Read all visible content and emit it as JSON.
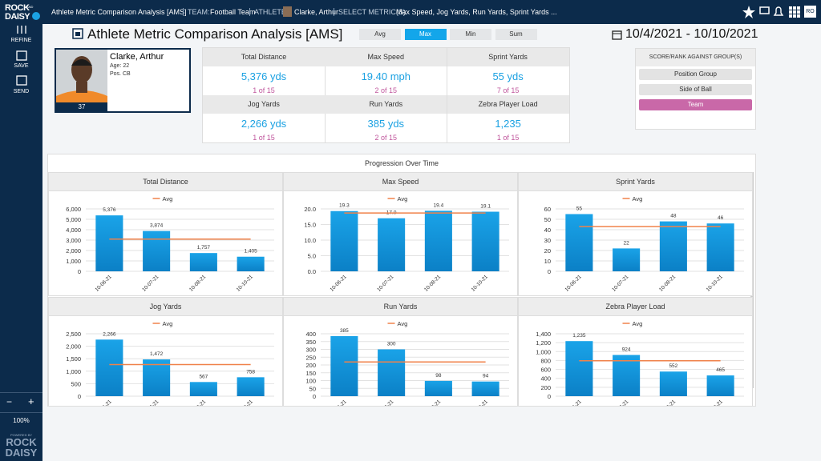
{
  "logo": {
    "line1": "ROCK",
    "line2": "DAISY",
    "small": "AND"
  },
  "topbar": {
    "title": "Athlete Metric Comparison Analysis [AMS]",
    "team_label": "TEAM:",
    "team": "Football Team",
    "athlete_label": "ATHLETE:",
    "athlete": "Clarke, Arthur",
    "metric_label": "SELECT METRIC(S):",
    "metrics": "Max Speed,  Jog Yards,  Run Yards,  Sprint Yards ...",
    "user": "RO"
  },
  "sidebar": {
    "items": [
      "REFINE",
      "SAVE",
      "SEND"
    ],
    "zoom_out": "−",
    "zoom_in": "+",
    "zoom": "100%",
    "powered": "POWERED BY",
    "brand1": "ROCK",
    "brand2": "DAISY"
  },
  "page": {
    "title": "Athlete Metric Comparison Analysis [AMS]",
    "aggregations": [
      "Avg",
      "Max",
      "Min",
      "Sum"
    ],
    "active_aggregation": 1,
    "date_range": "10/4/2021 - 10/10/2021"
  },
  "athlete": {
    "name": "Clarke, Arthur",
    "age": "Age: 22",
    "position": "Pos. CB",
    "number": "37"
  },
  "metrics": [
    {
      "label": "Total Distance",
      "value": "5,376 yds",
      "rank": "1 of 15"
    },
    {
      "label": "Max Speed",
      "value": "19.40 mph",
      "rank": "2 of 15"
    },
    {
      "label": "Sprint Yards",
      "value": "55 yds",
      "rank": "7 of 15"
    },
    {
      "label": "Jog Yards",
      "value": "2,266 yds",
      "rank": "1 of 15"
    },
    {
      "label": "Run Yards",
      "value": "385 yds",
      "rank": "2 of 15"
    },
    {
      "label": "Zebra Player Load",
      "value": "1,235",
      "rank": "1 of 15"
    }
  ],
  "score_panel": {
    "title": "SCORE/RANK AGAINST GROUP(S)",
    "options": [
      "Position Group",
      "Side of Ball",
      "Team"
    ],
    "active_option": 2
  },
  "progression": {
    "title": "Progression Over Time"
  },
  "chart_data": [
    {
      "type": "bar",
      "title": "Total Distance",
      "categories": [
        "10-06-21",
        "10-07-21",
        "10-08-21",
        "10-10-21"
      ],
      "values": [
        5376,
        3874,
        1757,
        1405
      ],
      "value_labels": [
        "5,376",
        "3,874",
        "1,757",
        "1,405"
      ],
      "color": "#1aa3e8",
      "ylim": [
        0,
        6000
      ],
      "yticks": [
        0,
        {
          "value": 1000,
          "label": "1,000"
        },
        {
          "value": 2000,
          "label": "2,000"
        },
        {
          "value": 3000,
          "label": "3,000"
        },
        {
          "value": 4000,
          "label": "4,000"
        },
        {
          "value": 5000,
          "label": "5,000"
        },
        {
          "value": 6000,
          "label": "6,000"
        }
      ],
      "grid": true,
      "avg": {
        "name": "Avg",
        "value": 3100,
        "color": "#f0824a"
      }
    },
    {
      "type": "bar",
      "title": "Max Speed",
      "categories": [
        "10-06-21",
        "10-07-21",
        "10-08-21",
        "10-10-21"
      ],
      "values": [
        19.3,
        17.0,
        19.4,
        19.1
      ],
      "value_labels": [
        "19.3",
        "17.0",
        "19.4",
        "19.1"
      ],
      "color": "#1aa3e8",
      "ylim": [
        0,
        20
      ],
      "yticks": [
        {
          "value": 0,
          "label": "0.0"
        },
        {
          "value": 5,
          "label": "5.0"
        },
        {
          "value": 10,
          "label": "10.0"
        },
        {
          "value": 15,
          "label": "15.0"
        },
        {
          "value": 20,
          "label": "20.0"
        }
      ],
      "grid": true,
      "avg": {
        "name": "Avg",
        "value": 18.7,
        "color": "#f0824a"
      }
    },
    {
      "type": "bar",
      "title": "Sprint Yards",
      "categories": [
        "10-06-21",
        "10-07-21",
        "10-08-21",
        "10-10-21"
      ],
      "values": [
        55,
        22,
        48,
        46
      ],
      "color": "#1aa3e8",
      "ylim": [
        0,
        60
      ],
      "yticks": [
        0,
        10,
        20,
        30,
        40,
        50,
        60
      ],
      "grid": true,
      "avg": {
        "name": "Avg",
        "value": 43,
        "color": "#f0824a"
      }
    },
    {
      "type": "bar",
      "title": "Jog Yards",
      "categories": [
        "10-06-21",
        "10-07-21",
        "10-08-21",
        "10-10-21"
      ],
      "values": [
        2266,
        1472,
        567,
        758
      ],
      "value_labels": [
        "2,266",
        "1,472",
        "567",
        "758"
      ],
      "color": "#1aa3e8",
      "ylim": [
        0,
        2500
      ],
      "yticks": [
        0,
        500,
        {
          "value": 1000,
          "label": "1,000"
        },
        {
          "value": 1500,
          "label": "1,500"
        },
        {
          "value": 2000,
          "label": "2,000"
        },
        {
          "value": 2500,
          "label": "2,500"
        }
      ],
      "grid": true,
      "avg": {
        "name": "Avg",
        "value": 1266,
        "color": "#f0824a"
      }
    },
    {
      "type": "bar",
      "title": "Run Yards",
      "categories": [
        "10-06-21",
        "10-07-21",
        "10-08-21",
        "10-10-21"
      ],
      "values": [
        385,
        300,
        98,
        94
      ],
      "color": "#1aa3e8",
      "ylim": [
        0,
        400
      ],
      "yticks": [
        0,
        50,
        100,
        150,
        200,
        250,
        300,
        350,
        400
      ],
      "grid": true,
      "avg": {
        "name": "Avg",
        "value": 219,
        "color": "#f0824a"
      }
    },
    {
      "type": "bar",
      "title": "Zebra Player Load",
      "categories": [
        "10-06-21",
        "10-07-21",
        "10-08-21",
        "10-10-21"
      ],
      "values": [
        1235,
        924,
        552,
        465
      ],
      "value_labels": [
        "1,235",
        "924",
        "552",
        "465"
      ],
      "color": "#1aa3e8",
      "ylim": [
        0,
        1400
      ],
      "yticks": [
        0,
        200,
        400,
        600,
        800,
        {
          "value": 1000,
          "label": "1,000"
        },
        {
          "value": 1200,
          "label": "1,200"
        },
        {
          "value": 1400,
          "label": "1,400"
        }
      ],
      "grid": true,
      "avg": {
        "name": "Avg",
        "value": 794,
        "color": "#f0824a"
      }
    }
  ]
}
